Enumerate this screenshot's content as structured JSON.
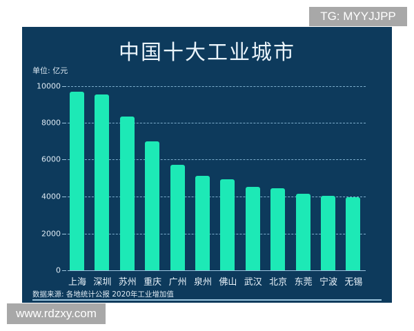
{
  "watermarks": {
    "top_right": "TG: MYYJJPP",
    "bottom_left": "www.rdzxy.com"
  },
  "colors": {
    "background": "#0d3a5c",
    "bar": "#1de9b6",
    "text": "#eaf4fb"
  },
  "chart_data": {
    "type": "bar",
    "title": "中国十大工业城市",
    "unit_label": "单位: 亿元",
    "xlabel": "",
    "ylabel": "亿元",
    "ylim": [
      0,
      10000
    ],
    "yticks": [
      0,
      2000,
      4000,
      6000,
      8000,
      10000
    ],
    "grid": true,
    "categories": [
      "上海",
      "深圳",
      "苏州",
      "重庆",
      "广州",
      "泉州",
      "佛山",
      "武汉",
      "北京",
      "东莞",
      "宁波",
      "无锡"
    ],
    "values": [
      9700,
      9550,
      8350,
      7000,
      5730,
      5130,
      4940,
      4530,
      4460,
      4160,
      4040,
      3970
    ],
    "source": "数据来源: 各地统计公报  2020年工业增加值"
  }
}
